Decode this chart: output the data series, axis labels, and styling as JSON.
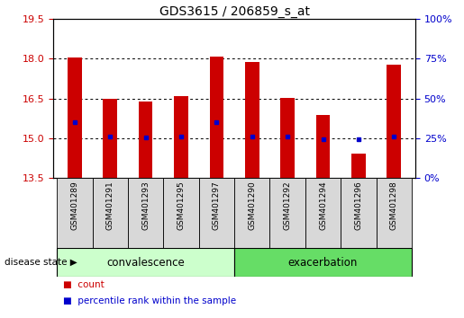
{
  "title": "GDS3615 / 206859_s_at",
  "samples": [
    "GSM401289",
    "GSM401291",
    "GSM401293",
    "GSM401295",
    "GSM401297",
    "GSM401290",
    "GSM401292",
    "GSM401294",
    "GSM401296",
    "GSM401298"
  ],
  "bar_tops": [
    18.05,
    16.48,
    16.38,
    16.58,
    18.08,
    17.88,
    16.53,
    15.88,
    14.42,
    17.77
  ],
  "bar_bottom": 13.5,
  "blue_dots": [
    15.62,
    15.08,
    15.05,
    15.08,
    15.62,
    15.08,
    15.08,
    14.98,
    14.98,
    15.08
  ],
  "bar_color": "#cc0000",
  "dot_color": "#0000cc",
  "ylim_left": [
    13.5,
    19.5
  ],
  "yticks_left": [
    13.5,
    15.0,
    16.5,
    18.0,
    19.5
  ],
  "ylim_right": [
    0,
    100
  ],
  "yticks_right": [
    0,
    25,
    50,
    75,
    100
  ],
  "ytick_labels_right": [
    "0%",
    "25%",
    "50%",
    "75%",
    "100%"
  ],
  "group1_label": "convalescence",
  "group2_label": "exacerbation",
  "group1_count": 5,
  "group2_count": 5,
  "disease_state_label": "disease state",
  "legend_count_label": "count",
  "legend_pct_label": "percentile rank within the sample",
  "bg_color": "#ffffff",
  "grid_color": "#000000",
  "tick_color_left": "#cc0000",
  "tick_color_right": "#0000cc",
  "group1_color": "#ccffcc",
  "group2_color": "#66dd66",
  "xlabel_bg": "#d8d8d8",
  "bar_width": 0.4
}
